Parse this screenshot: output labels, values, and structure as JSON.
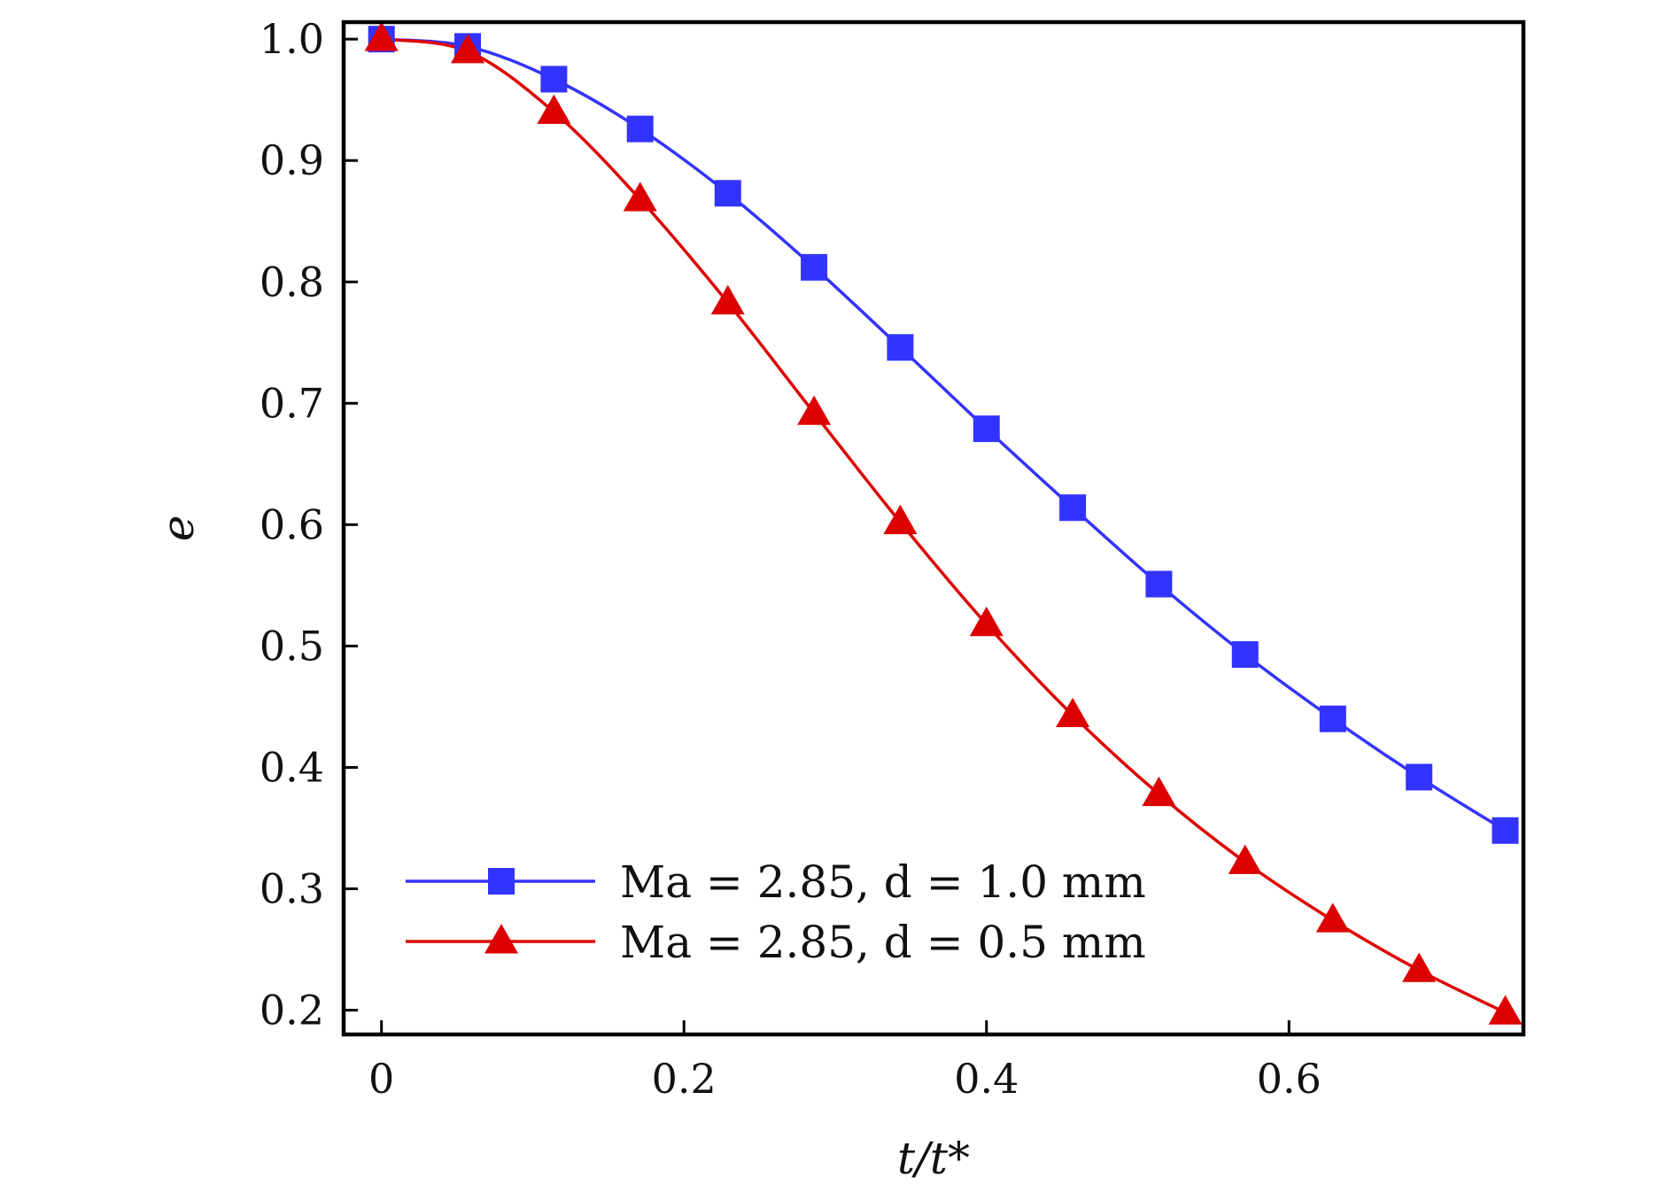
{
  "chart_data": {
    "type": "line",
    "xlabel": "t/t*",
    "ylabel": "e",
    "xlim": [
      -0.025,
      0.755
    ],
    "ylim": [
      0.18,
      1.014
    ],
    "xticks": [
      0,
      0.2,
      0.4,
      0.6
    ],
    "xtick_labels": [
      "0",
      "0.2",
      "0.4",
      "0.6"
    ],
    "yticks": [
      0.2,
      0.3,
      0.4,
      0.5,
      0.6,
      0.7,
      0.8,
      0.9,
      1.0
    ],
    "ytick_labels": [
      "0.2",
      "0.3",
      "0.4",
      "0.5",
      "0.6",
      "0.7",
      "0.8",
      "0.9",
      "1.0"
    ],
    "grid": false,
    "legend_position": "bottom-left",
    "series": [
      {
        "name": "Ma = 2.85, d = 1.0 mm",
        "color": "#3333ff",
        "marker": "square",
        "x": [
          0,
          0.057,
          0.114,
          0.171,
          0.229,
          0.286,
          0.343,
          0.4,
          0.457,
          0.514,
          0.571,
          0.629,
          0.686,
          0.743
        ],
        "y": [
          1.0,
          0.994,
          0.967,
          0.926,
          0.873,
          0.812,
          0.746,
          0.679,
          0.614,
          0.551,
          0.493,
          0.44,
          0.392,
          0.348
        ]
      },
      {
        "name": "Ma = 2.85, d = 0.5 mm",
        "color": "#dd0000",
        "marker": "triangle",
        "x": [
          0,
          0.057,
          0.114,
          0.171,
          0.229,
          0.286,
          0.343,
          0.4,
          0.457,
          0.514,
          0.571,
          0.629,
          0.686,
          0.743
        ],
        "y": [
          1.0,
          0.99,
          0.94,
          0.868,
          0.783,
          0.692,
          0.602,
          0.518,
          0.443,
          0.378,
          0.322,
          0.274,
          0.233,
          0.198
        ]
      }
    ]
  }
}
